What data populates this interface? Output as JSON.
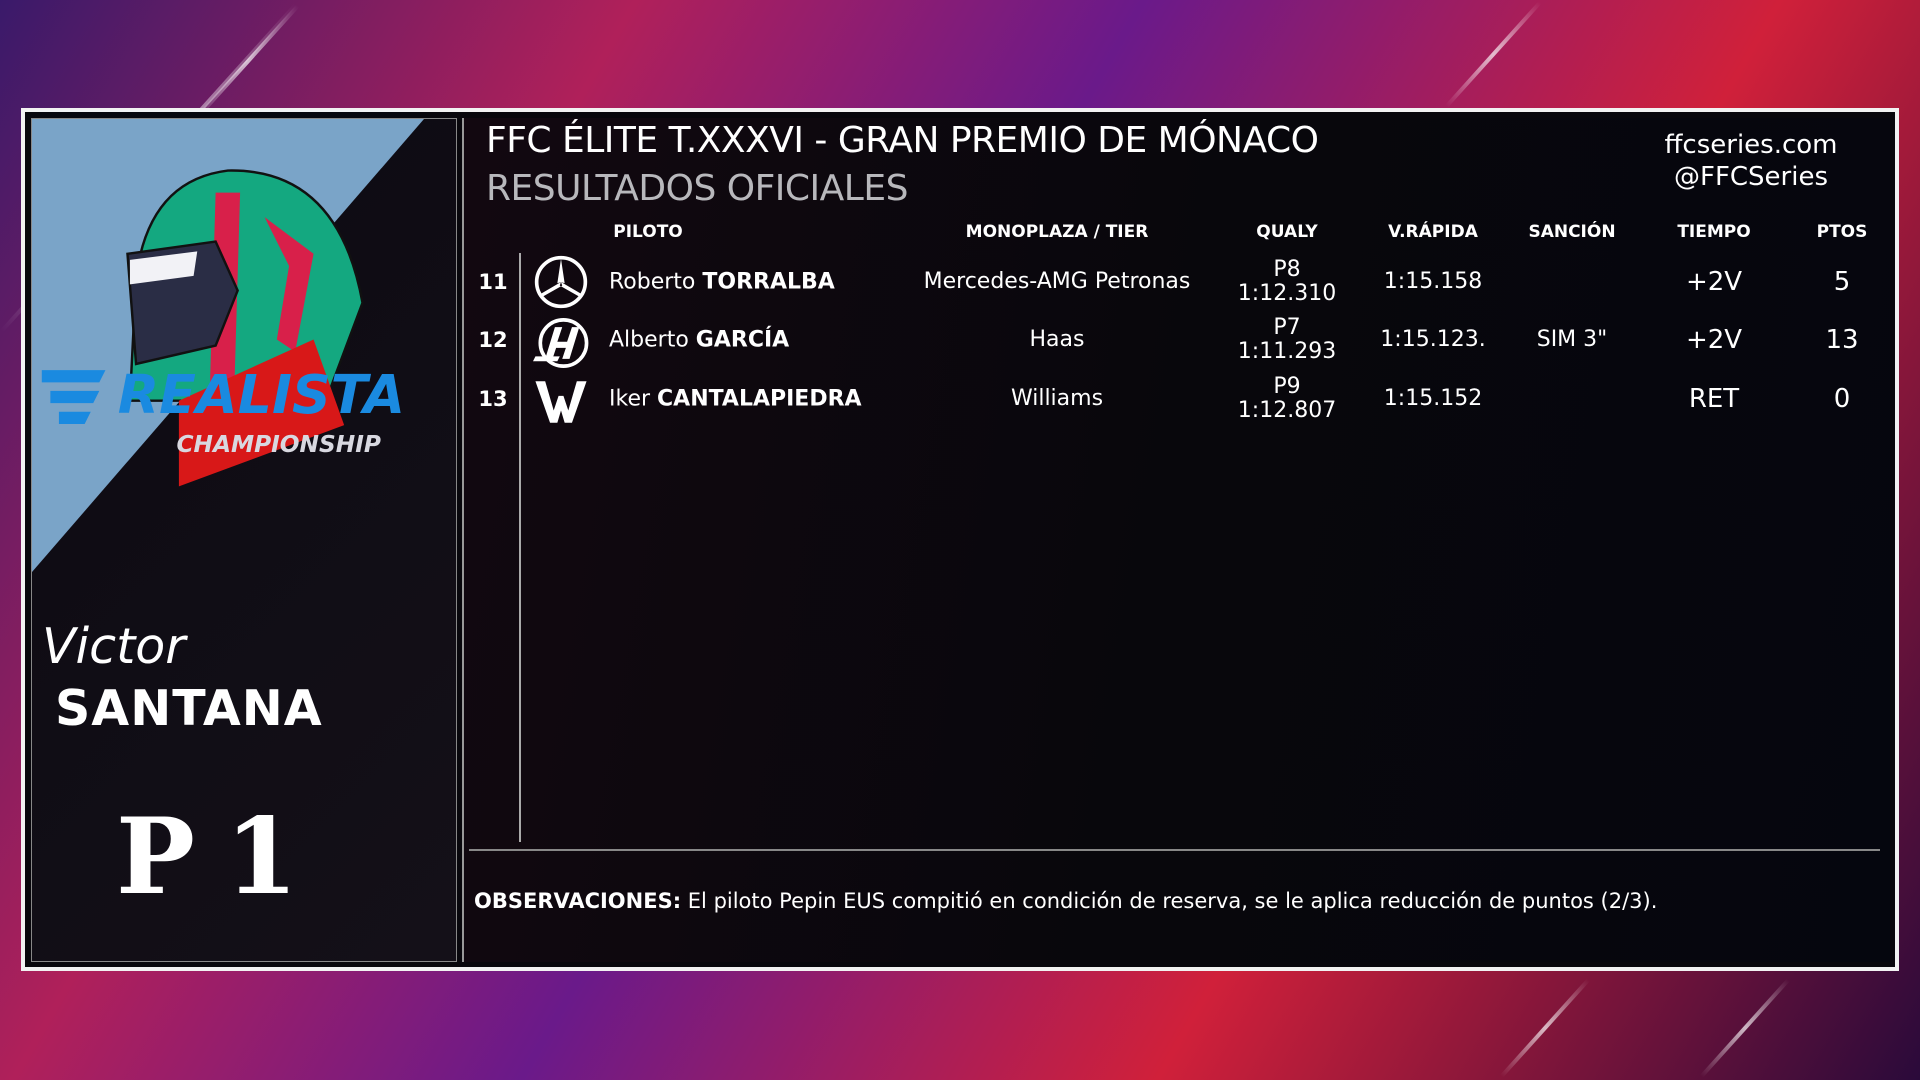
{
  "header": {
    "title": "FFC ÉLITE T.XXXVI - GRAN PREMIO DE MÓNACO",
    "subtitle": "RESULTADOS OFICIALES",
    "website": "ffcseries.com",
    "social": "@FFCSeries"
  },
  "driver_card": {
    "first_name": "Victor",
    "last_name": "SANTANA",
    "position": "P1",
    "logo_text": "REALISTA",
    "logo_subtext": "CHAMPIONSHIP"
  },
  "table": {
    "columns": {
      "piloto": "PILOTO",
      "monoplaza": "MONOPLAZA / TIER",
      "qualy": "QUALY",
      "vrapida": "V.RÁPIDA",
      "sancion": "SANCIÓN",
      "tiempo": "TIEMPO",
      "ptos": "PTOS"
    },
    "rows": [
      {
        "pos": "11",
        "team_icon": "mercedes-logo",
        "first": "Roberto",
        "last": "TORRALBA",
        "team": "Mercedes-AMG Petronas",
        "qualy_pos": "P8",
        "qualy_time": "1:12.310",
        "vrapida": "1:15.158",
        "sancion": "",
        "tiempo": "+2V",
        "ptos": "5"
      },
      {
        "pos": "12",
        "team_icon": "haas-logo",
        "first": "Alberto",
        "last": "GARCÍA",
        "team": "Haas",
        "qualy_pos": "P7",
        "qualy_time": "1:11.293",
        "vrapida": "1:15.123.",
        "sancion": "SIM 3\"",
        "tiempo": "+2V",
        "ptos": "13"
      },
      {
        "pos": "13",
        "team_icon": "williams-logo",
        "first": "Iker",
        "last": "CANTALAPIEDRA",
        "team": "Williams",
        "qualy_pos": "P9",
        "qualy_time": "1:12.807",
        "vrapida": "1:15.152",
        "sancion": "",
        "tiempo": "RET",
        "ptos": "0"
      }
    ]
  },
  "observations": {
    "label": "OBSERVACIONES:",
    "text": " El piloto Pepin EUS compitió en condición de reserva, se le aplica reducción de puntos (2/3)."
  }
}
